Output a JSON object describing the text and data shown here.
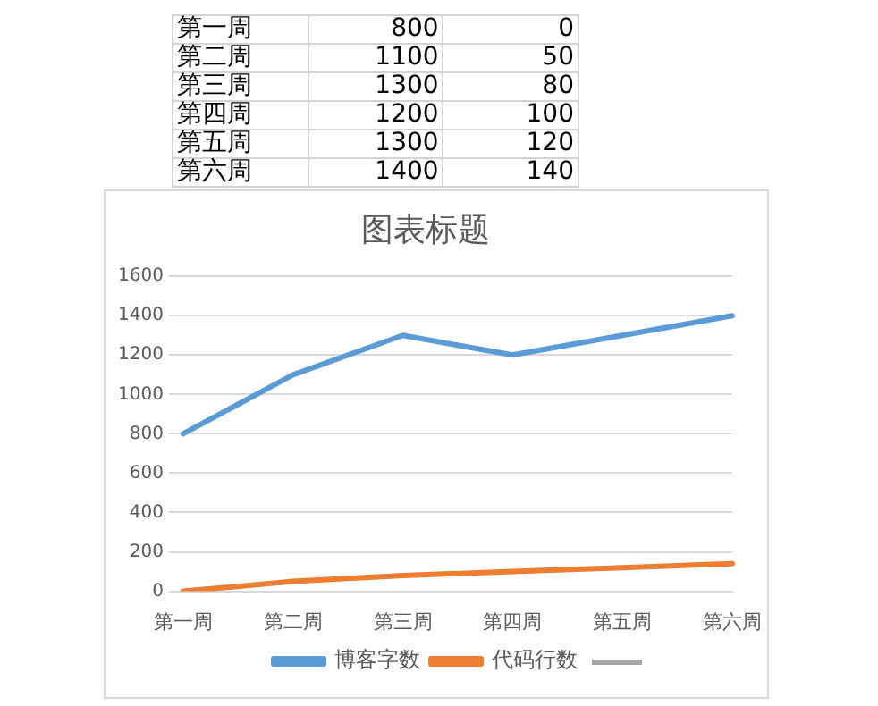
{
  "chart_data": [
    {
      "type": "other",
      "annotations": [
        "第一周",
        "800",
        "0",
        "第二周",
        "1100",
        "50",
        "第三周",
        "1300",
        "80",
        "第四周",
        "1200",
        "100",
        "第五周",
        "1300",
        "120",
        "第六周",
        "1400",
        "140"
      ]
    },
    {
      "type": "line",
      "title": "图表标题",
      "categories": [
        "第一周",
        "第二周",
        "第三周",
        "第四周",
        "第五周",
        "第六周"
      ],
      "series": [
        {
          "name": "博客字数",
          "color": "#5b9bd5",
          "values": [
            800,
            1100,
            1300,
            1200,
            1300,
            1400
          ]
        },
        {
          "name": "代码行数",
          "color": "#ed7d31",
          "values": [
            0,
            50,
            80,
            100,
            120,
            140
          ]
        }
      ],
      "ylim": [
        0,
        1600
      ],
      "yticks": [
        0,
        200,
        400,
        600,
        800,
        1000,
        1200,
        1400,
        1600
      ],
      "grid": "y",
      "legend": "bottom",
      "marker": "none",
      "line_style": "solid"
    }
  ]
}
